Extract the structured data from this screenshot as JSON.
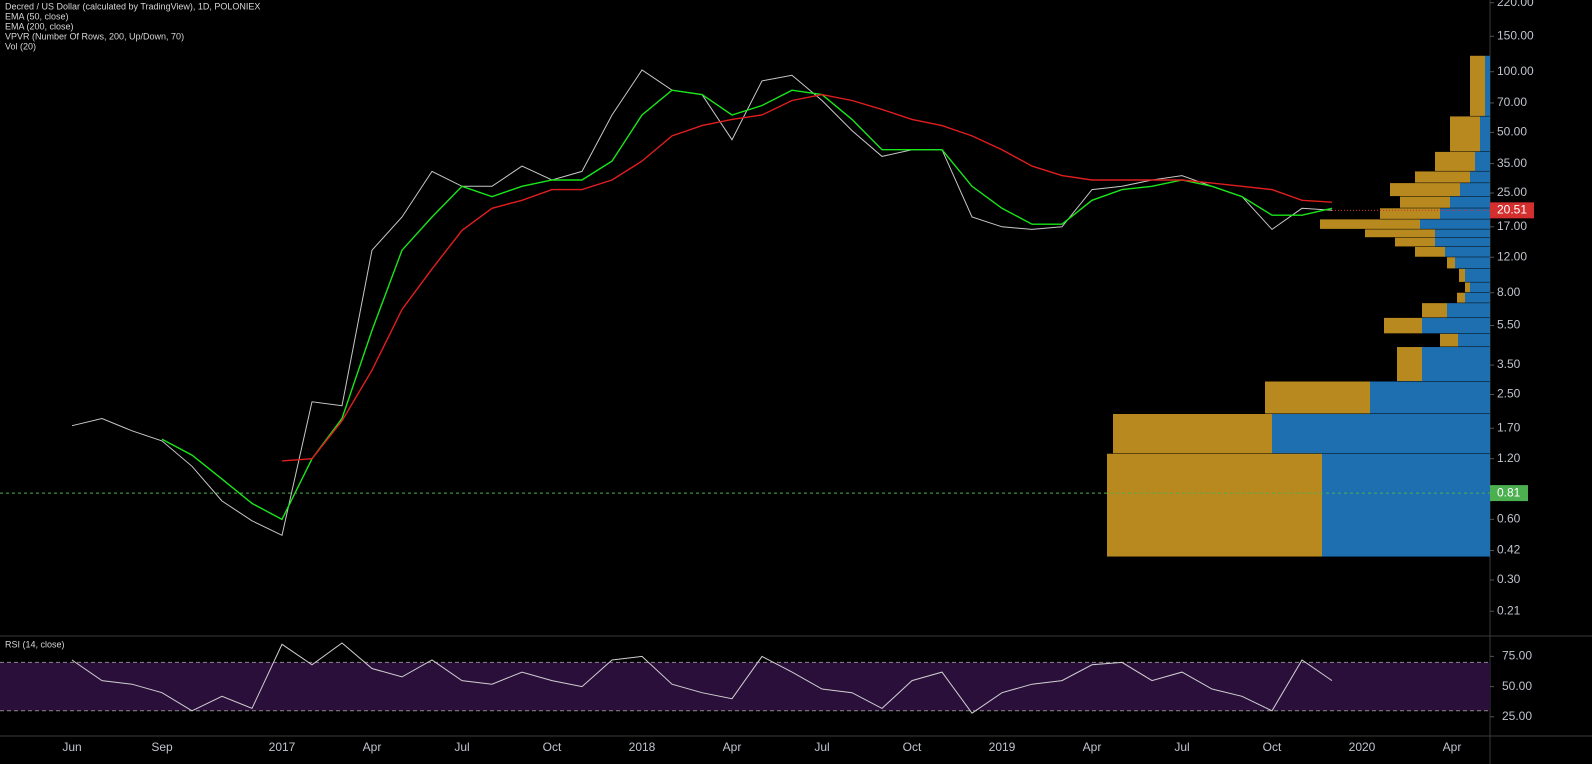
{
  "chart_data": [
    {
      "type": "line",
      "log_scale": true,
      "categories": [
        "Jun",
        null,
        null,
        "Sep",
        null,
        null,
        null,
        "2017",
        null,
        null,
        "Apr",
        null,
        null,
        "Jul",
        null,
        null,
        "Oct",
        null,
        null,
        "2018",
        null,
        null,
        "Apr",
        null,
        null,
        "Jul",
        null,
        null,
        "Oct",
        null,
        null,
        "2019",
        null,
        null,
        "Apr",
        null,
        null,
        "Jul",
        null,
        null,
        "Oct",
        null,
        null,
        "2020",
        null,
        null,
        "Apr"
      ],
      "series": [
        {
          "name": "Decred / US Dollar (calculated by TradingView), 1D, POLONIEX",
          "color": "#c8c8c8",
          "values": [
            1.75,
            1.9,
            1.65,
            1.47,
            1.1,
            0.74,
            0.59,
            0.5,
            2.3,
            2.2,
            13,
            19,
            32,
            27,
            27,
            34,
            29,
            32,
            61,
            102,
            81,
            77,
            46,
            90,
            96,
            72,
            51,
            38,
            41,
            41,
            19,
            17,
            16.5,
            17,
            26,
            27,
            29,
            30.5,
            27,
            24,
            16.5,
            21,
            20.51,
            null,
            null,
            null,
            null
          ]
        },
        {
          "name": "EMA (50, close)",
          "color": "#19e619",
          "values": [
            null,
            null,
            null,
            1.5,
            1.25,
            0.95,
            0.72,
            0.6,
            1.2,
            1.9,
            5.2,
            13,
            19,
            27,
            24,
            27,
            29,
            29,
            36,
            61,
            81,
            77,
            61,
            68,
            81,
            77,
            58,
            41,
            41,
            41,
            27,
            21,
            17.5,
            17.5,
            23,
            26,
            27,
            29,
            27,
            24,
            19.4,
            19.4,
            21,
            null,
            null,
            null,
            null
          ]
        },
        {
          "name": "EMA (200, close)",
          "color": "#e01e1e",
          "values": [
            null,
            null,
            null,
            null,
            null,
            null,
            null,
            1.17,
            1.2,
            1.85,
            3.3,
            6.6,
            10.5,
            16.3,
            21,
            23,
            26,
            26,
            29,
            36,
            48,
            54,
            58,
            61,
            72,
            77,
            72,
            65,
            58,
            54,
            48,
            41,
            34,
            30.5,
            29,
            29,
            29,
            29,
            28,
            27,
            26,
            23,
            22.5,
            null,
            null,
            null,
            null
          ]
        }
      ],
      "volume_profile": {
        "name": "VPVR (Number Of Rows, 200, Up/Down, 70)",
        "up_color": "#1e6fb0",
        "down_color": "#b8891e",
        "rows": [
          {
            "low": 0.39,
            "high": 1.27,
            "up": 168,
            "down": 215
          },
          {
            "low": 1.27,
            "high": 2.0,
            "up": 218,
            "down": 159
          },
          {
            "low": 2.0,
            "high": 2.9,
            "up": 120,
            "down": 105
          },
          {
            "low": 2.9,
            "high": 4.3,
            "up": 68,
            "down": 25
          },
          {
            "low": 4.3,
            "high": 5.0,
            "up": 32,
            "down": 18
          },
          {
            "low": 5.0,
            "high": 6.0,
            "up": 68,
            "down": 38
          },
          {
            "low": 6.0,
            "high": 7.1,
            "up": 43,
            "down": 25
          },
          {
            "low": 7.1,
            "high": 8.0,
            "up": 25,
            "down": 8
          },
          {
            "low": 8.0,
            "high": 9.0,
            "up": 20,
            "down": 5
          },
          {
            "low": 9.0,
            "high": 10.5,
            "up": 25,
            "down": 6
          },
          {
            "low": 10.5,
            "high": 12,
            "up": 35,
            "down": 8
          },
          {
            "low": 12,
            "high": 13.5,
            "up": 45,
            "down": 30
          },
          {
            "low": 13.5,
            "high": 15,
            "up": 55,
            "down": 40
          },
          {
            "low": 15,
            "high": 16.5,
            "up": 55,
            "down": 70
          },
          {
            "low": 16.5,
            "high": 18.5,
            "up": 70,
            "down": 100
          },
          {
            "low": 18.5,
            "high": 21,
            "up": 50,
            "down": 60
          },
          {
            "low": 21,
            "high": 24,
            "up": 40,
            "down": 50
          },
          {
            "low": 24,
            "high": 28,
            "up": 30,
            "down": 70
          },
          {
            "low": 28,
            "high": 32,
            "up": 20,
            "down": 55
          },
          {
            "low": 32,
            "high": 40,
            "up": 15,
            "down": 40
          },
          {
            "low": 40,
            "high": 60,
            "up": 10,
            "down": 30
          },
          {
            "low": 60,
            "high": 120,
            "up": 5,
            "down": 15
          }
        ]
      },
      "volume": {
        "name": "Vol (20)"
      },
      "last_price": {
        "value": 20.51,
        "color": "#d32f2f"
      },
      "marker_line": {
        "value": 0.81,
        "color": "#4caf50"
      },
      "ylim": [
        0.16,
        227
      ],
      "yticks": [
        {
          "value": 220,
          "label": "220.00"
        },
        {
          "value": 150,
          "label": "150.00"
        },
        {
          "value": 100,
          "label": "100.00"
        },
        {
          "value": 70,
          "label": "70.00"
        },
        {
          "value": 50,
          "label": "50.00"
        },
        {
          "value": 35,
          "label": "35.00"
        },
        {
          "value": 25,
          "label": "25.00"
        },
        {
          "value": 17,
          "label": "17.00"
        },
        {
          "value": 12,
          "label": "12.00"
        },
        {
          "value": 8,
          "label": "8.00"
        },
        {
          "value": 5.5,
          "label": "5.50"
        },
        {
          "value": 3.5,
          "label": "3.50"
        },
        {
          "value": 2.5,
          "label": "2.50"
        },
        {
          "value": 1.7,
          "label": "1.70"
        },
        {
          "value": 1.2,
          "label": "1.20"
        },
        {
          "value": 0.6,
          "label": "0.60"
        },
        0.42,
        {
          "value": 0.3,
          "label": "0.30"
        },
        0.21
      ]
    },
    {
      "type": "line",
      "series": [
        {
          "name": "RSI (14, close)",
          "color": "#d0d0d0",
          "values": [
            72,
            55,
            52,
            45,
            30,
            42,
            32,
            85,
            68,
            86,
            65,
            58,
            72,
            55,
            52,
            62,
            55,
            50,
            72,
            75,
            52,
            45,
            40,
            75,
            62,
            48,
            45,
            32,
            55,
            62,
            28,
            45,
            52,
            55,
            68,
            70,
            55,
            62,
            48,
            42,
            30,
            72,
            55,
            null,
            null,
            null,
            null
          ]
        }
      ],
      "band": [
        30,
        70
      ],
      "band_color": "#2a0f3a",
      "ylim": [
        10,
        91
      ],
      "yticks": [
        {
          "value": 75,
          "label": "75.00"
        },
        {
          "value": 50,
          "label": "50.00"
        },
        {
          "value": 25,
          "label": "25.00"
        }
      ]
    }
  ]
}
